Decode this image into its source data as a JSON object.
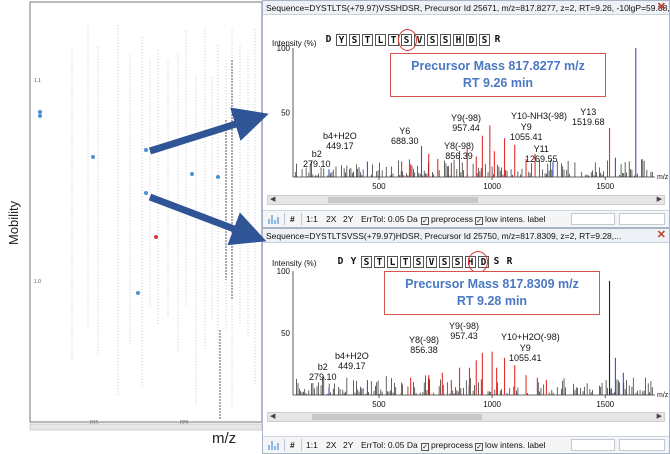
{
  "left_plot": {
    "y_axis_label": "Mobility",
    "x_axis_label": "m/z",
    "y_ticks": [
      "1.1",
      "1.0"
    ],
    "x_ticks": [
      "815",
      "820"
    ]
  },
  "panels": [
    {
      "title": "Sequence=DYSTLTS(+79.97)VSSHDSR, Precursor Id 25671, m/z=817.8277, z=2, RT=9.26, -10lgP=59.88, ppm...",
      "close_label": "✕",
      "intensity_label": "Intensity (%)",
      "y_ticks": [
        "100",
        "50"
      ],
      "x_ticks": [
        "500",
        "1000",
        "1500"
      ],
      "x_unit": "m/z",
      "sequence": [
        "D",
        "Y",
        "S",
        "T",
        "L",
        "T",
        "S",
        "V",
        "S",
        "S",
        "H",
        "D",
        "S",
        "R"
      ],
      "precursor_mass": "Precursor Mass  817.8277 m/z",
      "retention_time": "RT 9.26 min",
      "ions": [
        {
          "name": "b2",
          "mz": "279.10"
        },
        {
          "name": "b4+H2O",
          "mz": "449.17"
        },
        {
          "name": "Y6",
          "mz": "688.30"
        },
        {
          "name": "Y8(-98)",
          "mz": "856.39"
        },
        {
          "name": "Y9(-98)",
          "mz": "957.44"
        },
        {
          "name": "Y10-NH3(-98)",
          "mz": ""
        },
        {
          "name": "Y9",
          "mz": "1055.41"
        },
        {
          "name": "Y11",
          "mz": "1269.55"
        },
        {
          "name": "Y13",
          "mz": "1519.68"
        }
      ],
      "toolbar": {
        "hash": "#",
        "zoom_1": "1:1",
        "zoom_2x": "2X",
        "zoom_2y": "2Y",
        "err_tol": "ErrTol: 0.05 Da",
        "preprocess": "preprocess",
        "low_intens": "low intens. label"
      }
    },
    {
      "title": "Sequence=DYSTLTSVSS(+79.97)HDSR, Precursor Id 25750, m/z=817.8309, z=2, RT=9.28,...",
      "close_label": "✕",
      "intensity_label": "Intensity (%)",
      "y_ticks": [
        "100",
        "50"
      ],
      "x_ticks": [
        "500",
        "1000",
        "1500"
      ],
      "x_unit": "m/z",
      "sequence": [
        "D",
        "Y",
        "S",
        "T",
        "L",
        "T",
        "S",
        "V",
        "S",
        "S",
        "H",
        "D",
        "S",
        "R"
      ],
      "precursor_mass": "Precursor Mass 817.8309 m/z",
      "retention_time": "RT 9.28 min",
      "ions": [
        {
          "name": "b2",
          "mz": "279.10"
        },
        {
          "name": "b4+H2O",
          "mz": "449.17"
        },
        {
          "name": "Y8(-98)",
          "mz": "856.38"
        },
        {
          "name": "Y9(-98)",
          "mz": "957.43"
        },
        {
          "name": "Y10+H2O(-98)",
          "mz": ""
        },
        {
          "name": "Y9",
          "mz": "1055.41"
        }
      ],
      "toolbar": {
        "hash": "#",
        "zoom_1": "1:1",
        "zoom_2x": "2X",
        "zoom_2y": "2Y",
        "err_tol": "ErrTol: 0.05 Da",
        "preprocess": "preprocess",
        "low_intens": "low intens. label"
      }
    }
  ],
  "colors": {
    "arrow": "#2f5597",
    "precursor_text": "#4a78c2",
    "highlight": "#d33333",
    "peak_red": "#e03030",
    "peak_blue": "#3a4fd0",
    "peak_black": "#222222"
  }
}
